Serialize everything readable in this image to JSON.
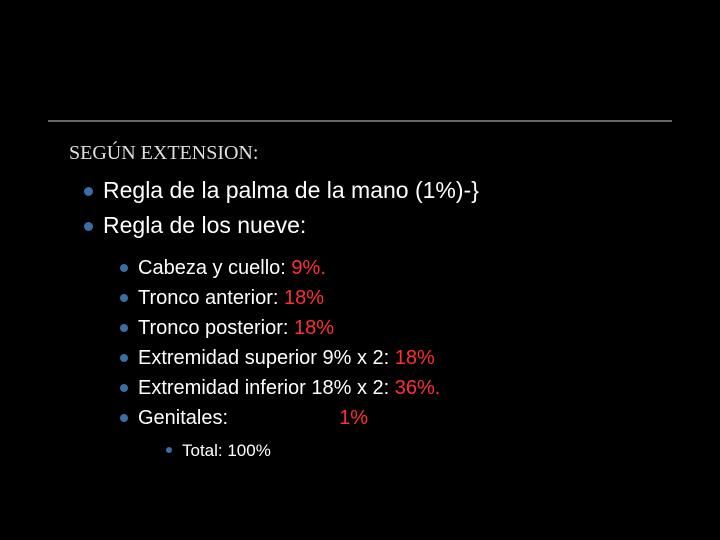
{
  "colors": {
    "background": "#000000",
    "text": "#ffffff",
    "heading": "#e0e0e0",
    "bullet": "#3a6ea5",
    "highlight": "#ff3030",
    "divider": "#666666"
  },
  "typography": {
    "heading_family": "Georgia, serif",
    "body_family": "Arial, sans-serif",
    "level0_size": 20,
    "level1_size": 23,
    "level2_size": 20,
    "level3_size": 17
  },
  "level0": {
    "text": "SEGÚN EXTENSION:"
  },
  "level1": {
    "item1": "Regla de la palma de la mano (1%)-}",
    "item2": "Regla de los nueve:"
  },
  "level2": {
    "r1a": "Cabeza y cuello: ",
    "r1b": "9%.",
    "r2a": "Tronco anterior: ",
    "r2b": "18%",
    "r3a": "Tronco posterior: ",
    "r3b": "18%",
    "r4a": "Extremidad superior  9% x 2: ",
    "r4b": "18%",
    "r5a": "Extremidad inferior    18% x 2: ",
    "r5b": "36%.",
    "r6a": "Genitales:                    ",
    "r6b": "1%"
  },
  "level3": {
    "total": "Total: 100%"
  }
}
